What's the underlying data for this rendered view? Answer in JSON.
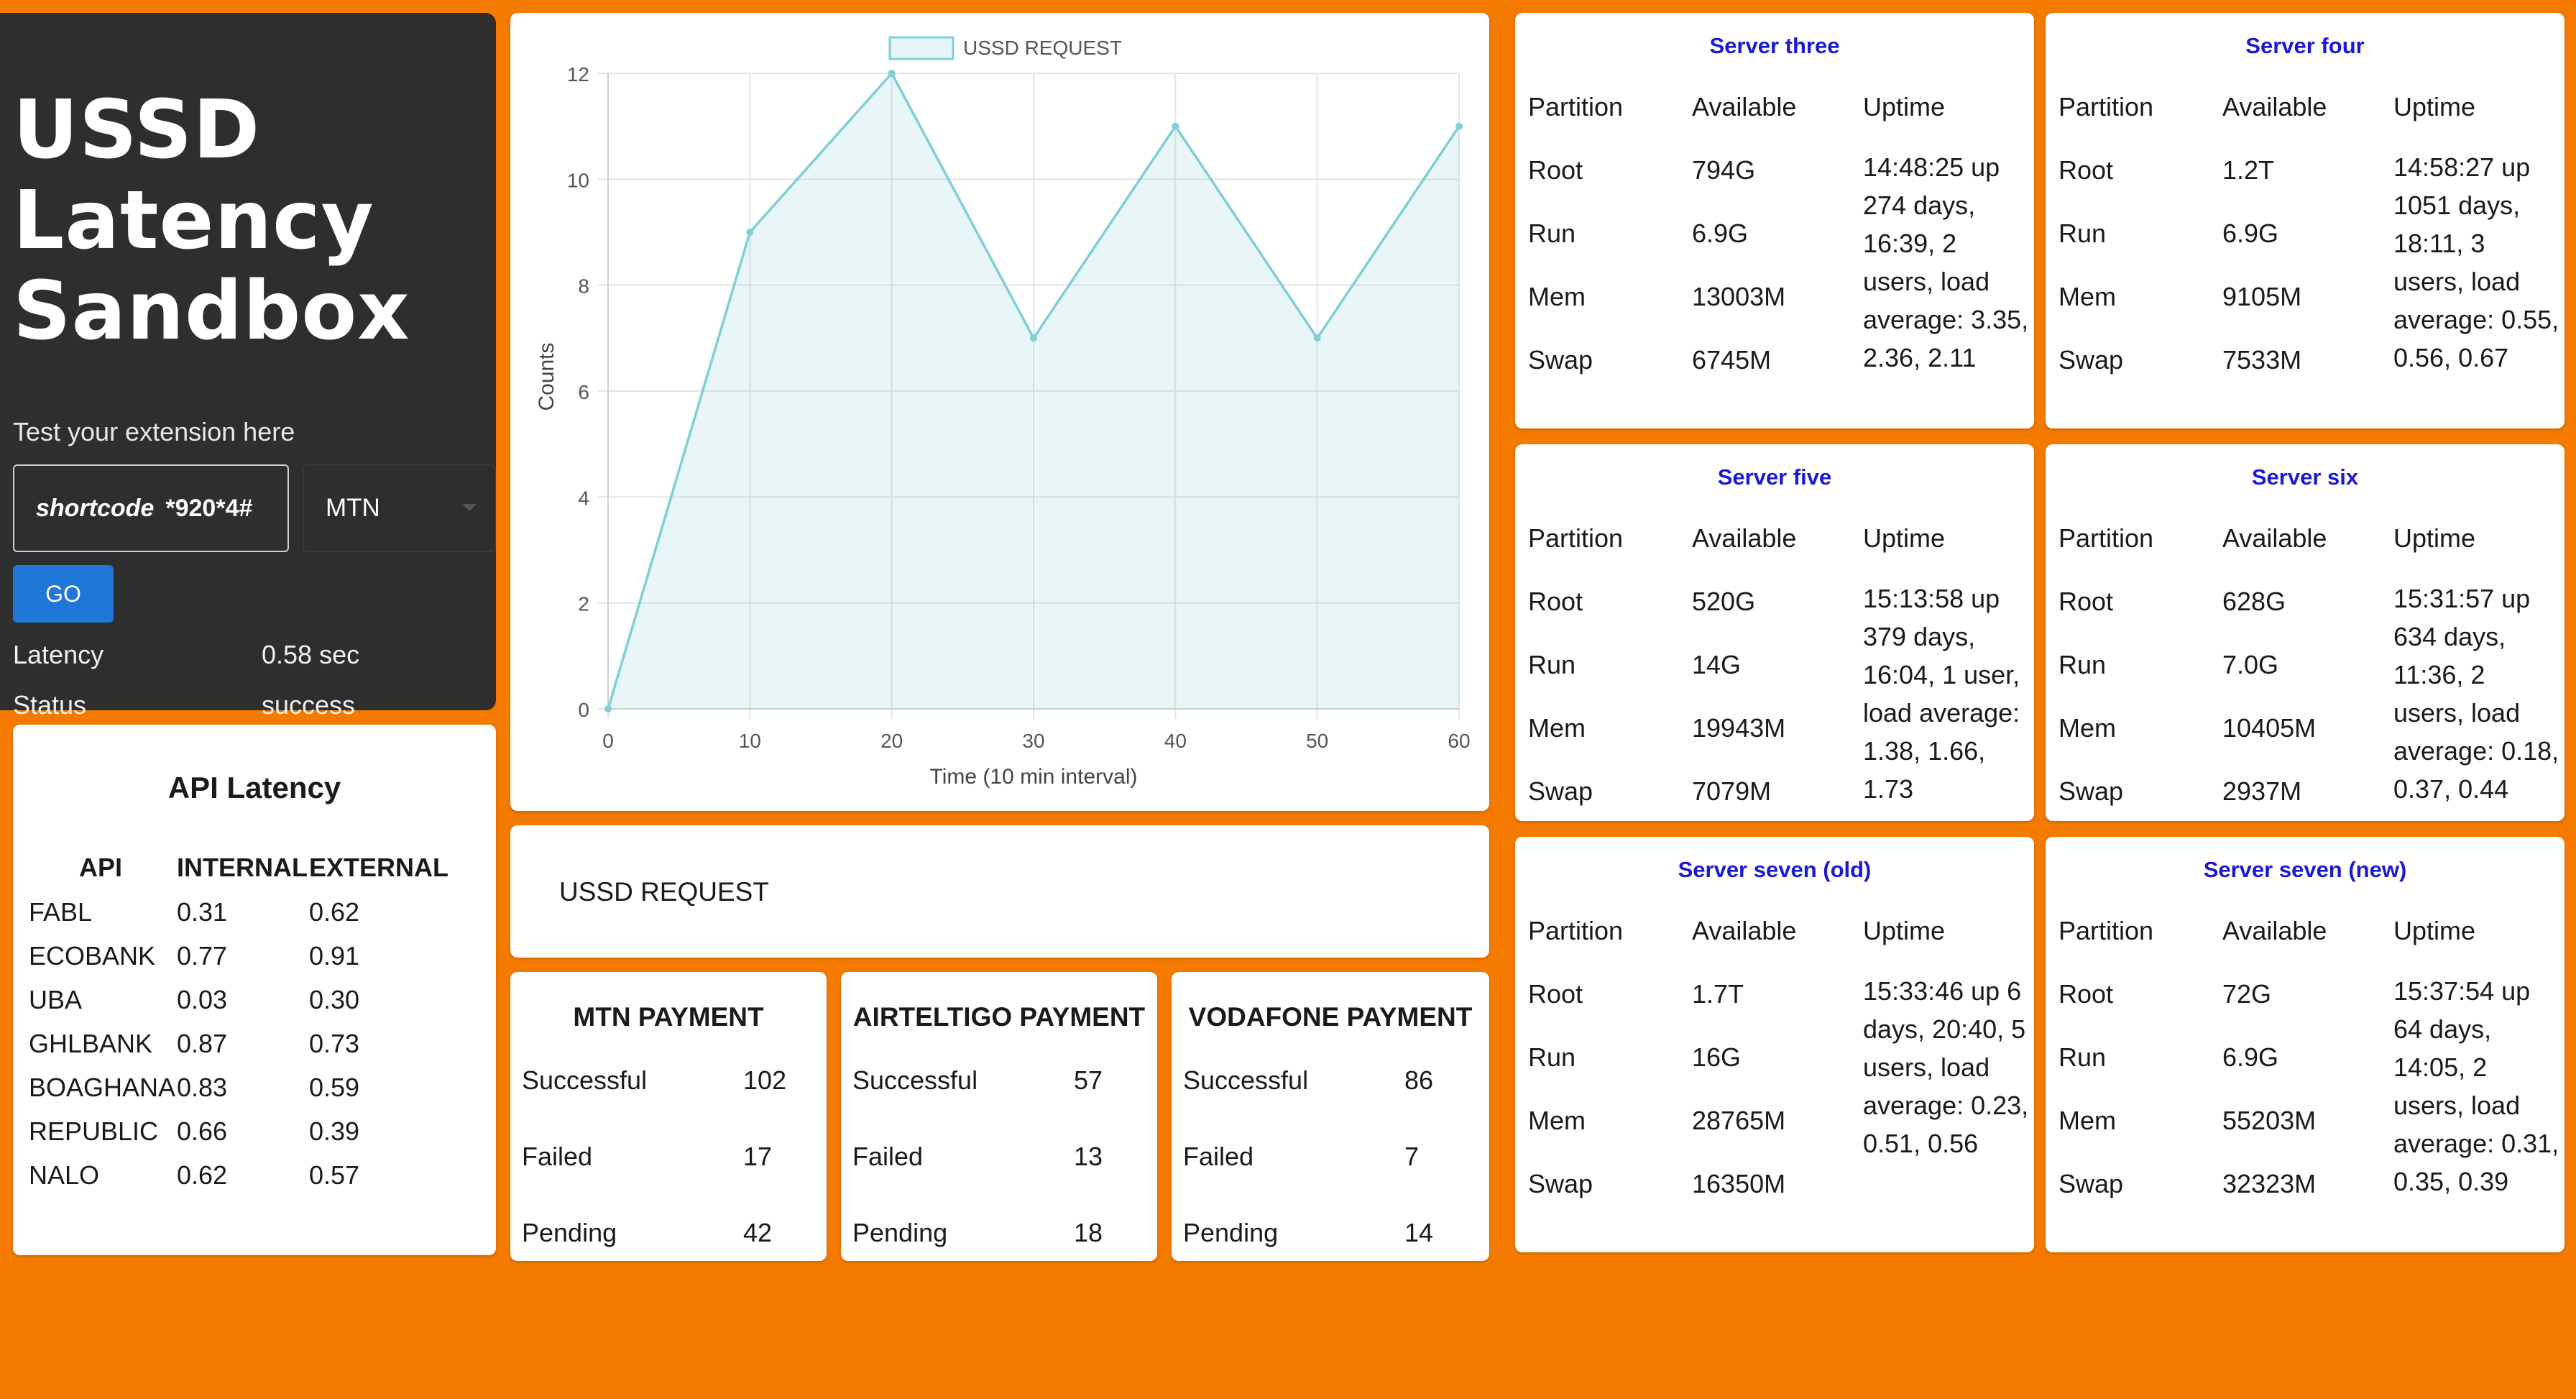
{
  "sandbox": {
    "title_lines": [
      "USSD",
      "Latency",
      "Sandbox"
    ],
    "hint": "Test your extension here",
    "shortcode_label": "shortcode",
    "shortcode_value": "*920*4#",
    "network": "MTN",
    "go_label": "GO",
    "latency_label": "Latency",
    "latency_value": "0.58 sec",
    "status_label": "Status",
    "status_value": "success"
  },
  "api_latency": {
    "title": "API Latency",
    "headers": [
      "API",
      "INTERNAL",
      "EXTERNAL"
    ],
    "rows": [
      [
        "FABL",
        "0.31",
        "0.62"
      ],
      [
        "ECOBANK",
        "0.77",
        "0.91"
      ],
      [
        "UBA",
        "0.03",
        "0.30"
      ],
      [
        "GHLBANK",
        "0.87",
        "0.73"
      ],
      [
        "BOAGHANA",
        "0.83",
        "0.59"
      ],
      [
        "REPUBLIC",
        "0.66",
        "0.39"
      ],
      [
        "NALO",
        "0.62",
        "0.57"
      ]
    ]
  },
  "chart_data": {
    "type": "area",
    "series": [
      {
        "name": "USSD REQUEST",
        "x": [
          0,
          10,
          20,
          30,
          40,
          50,
          60
        ],
        "values": [
          0,
          9,
          12,
          7,
          11,
          7,
          11
        ]
      }
    ],
    "xlabel": "Time (10 min interval)",
    "ylabel": "Counts",
    "xlim": [
      0,
      60
    ],
    "ylim": [
      0,
      12
    ],
    "xticks": [
      "0",
      "10",
      "20",
      "30",
      "40",
      "50",
      "60"
    ],
    "yticks": [
      "0",
      "2",
      "4",
      "6",
      "8",
      "10",
      "12"
    ],
    "grid": true,
    "legend": "top-center",
    "color": "#7fcfd6"
  },
  "ussd_request_label": "USSD REQUEST",
  "payments": [
    {
      "title": "MTN PAYMENT",
      "successful_label": "Successful",
      "successful": "102",
      "failed_label": "Failed",
      "failed": "17",
      "pending_label": "Pending",
      "pending": "42"
    },
    {
      "title": "AIRTELTIGO PAYMENT",
      "successful_label": "Successful",
      "successful": "57",
      "failed_label": "Failed",
      "failed": "13",
      "pending_label": "Pending",
      "pending": "18"
    },
    {
      "title": "VODAFONE PAYMENT",
      "successful_label": "Successful",
      "successful": "86",
      "failed_label": "Failed",
      "failed": "7",
      "pending_label": "Pending",
      "pending": "14"
    }
  ],
  "server_headers": [
    "Partition",
    "Available",
    "Uptime"
  ],
  "servers": [
    {
      "name": "Server three",
      "partitions": [
        [
          "Root",
          "794G"
        ],
        [
          "Run",
          "6.9G"
        ],
        [
          "Mem",
          "13003M"
        ],
        [
          "Swap",
          "6745M"
        ]
      ],
      "uptime": "14:48:25 up 274 days, 16:39, 2 users, load average: 3.35, 2.36, 2.11"
    },
    {
      "name": "Server four",
      "partitions": [
        [
          "Root",
          "1.2T"
        ],
        [
          "Run",
          "6.9G"
        ],
        [
          "Mem",
          "9105M"
        ],
        [
          "Swap",
          "7533M"
        ]
      ],
      "uptime": "14:58:27 up 1051 days, 18:11, 3 users, load average: 0.55, 0.56, 0.67"
    },
    {
      "name": "Server five",
      "partitions": [
        [
          "Root",
          "520G"
        ],
        [
          "Run",
          "14G"
        ],
        [
          "Mem",
          "19943M"
        ],
        [
          "Swap",
          "7079M"
        ]
      ],
      "uptime": "15:13:58 up 379 days, 16:04, 1 user, load average: 1.38, 1.66, 1.73"
    },
    {
      "name": "Server six",
      "partitions": [
        [
          "Root",
          "628G"
        ],
        [
          "Run",
          "7.0G"
        ],
        [
          "Mem",
          "10405M"
        ],
        [
          "Swap",
          "2937M"
        ]
      ],
      "uptime": "15:31:57 up 634 days, 11:36, 2 users, load average: 0.18, 0.37, 0.44"
    },
    {
      "name": "Server seven (old)",
      "partitions": [
        [
          "Root",
          "1.7T"
        ],
        [
          "Run",
          "16G"
        ],
        [
          "Mem",
          "28765M"
        ],
        [
          "Swap",
          "16350M"
        ]
      ],
      "uptime": "15:33:46 up 6 days, 20:40, 5 users, load average: 0.23, 0.51, 0.56"
    },
    {
      "name": "Server seven (new)",
      "partitions": [
        [
          "Root",
          "72G"
        ],
        [
          "Run",
          "6.9G"
        ],
        [
          "Mem",
          "55203M"
        ],
        [
          "Swap",
          "32323M"
        ]
      ],
      "uptime": "15:37:54 up 64 days, 14:05, 2 users, load average: 0.31, 0.35, 0.39"
    }
  ]
}
